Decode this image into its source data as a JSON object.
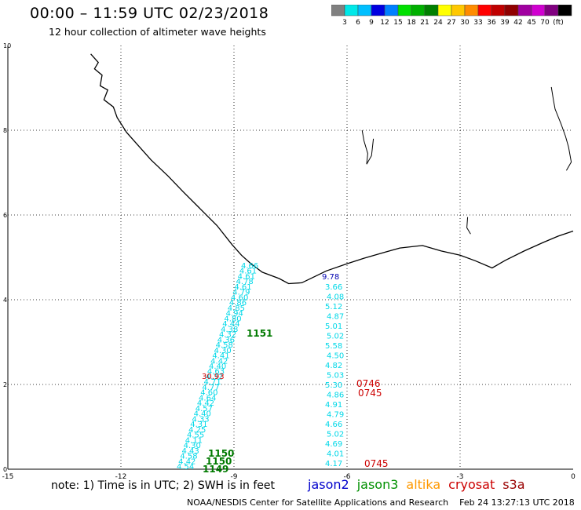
{
  "header": {
    "title": "00:00 – 11:59 UTC 02/23/2018",
    "subtitle": "12 hour collection of altimeter wave heights"
  },
  "colorbar": {
    "colors": [
      "#808080",
      "#00e8e8",
      "#00bfff",
      "#0000e0",
      "#0080ff",
      "#00e000",
      "#00b000",
      "#008000",
      "#ffff00",
      "#ffc800",
      "#ff8c00",
      "#ff0000",
      "#c00000",
      "#900000",
      "#a000a0",
      "#d000d0",
      "#800080",
      "#000000"
    ],
    "labels": [
      "3",
      "6",
      "9",
      "12",
      "15",
      "18",
      "21",
      "24",
      "27",
      "30",
      "33",
      "36",
      "39",
      "42",
      "45",
      "70",
      "(ft)"
    ]
  },
  "map": {
    "lon_range": [
      -15,
      0
    ],
    "lat_range": [
      0,
      10
    ],
    "x_ticks": [
      "-15",
      "-12",
      "-9",
      "-6",
      "-3",
      "0"
    ],
    "y_ticks": [
      "10",
      "8",
      "6",
      "4",
      "2",
      "0"
    ]
  },
  "tracks": {
    "cyan_left": [
      "4.66",
      "4.61",
      "4.61",
      "4.78",
      "4.61",
      "4.79",
      "4.60",
      "4.86",
      "4.85",
      "4.94",
      "4.80",
      "4.44",
      "4.38",
      "4.32",
      "4.36",
      "4.58",
      "4.30",
      "4.41",
      "4.42",
      "4.40",
      "4.63",
      "4.32",
      "4.71",
      "4.77",
      "4.60",
      "4.64",
      "4.42",
      "4.57",
      "4.40",
      "4.33",
      "4.31",
      "4.25",
      "4.55",
      "4.11",
      "4.30",
      "4.43",
      "4.58",
      "4.42",
      "4.54"
    ],
    "cyan_right": [
      "3.66",
      "4.08",
      "5.12",
      "4.87",
      "5.01",
      "5.02",
      "5.58",
      "4.50",
      "4.82",
      "5.03",
      "5.30",
      "4.86",
      "4.91",
      "4.79",
      "4.66",
      "5.02",
      "4.69",
      "4.01",
      "4.17"
    ],
    "dark_blue": "9.78",
    "red_outlier": "30.93",
    "green_times": [
      "1151",
      "1150",
      "1150",
      "1149"
    ],
    "red_times": [
      "0746",
      "0745",
      "0745"
    ]
  },
  "footer": {
    "note": "note: 1) Time is in UTC; 2) SWH is in feet",
    "legend": [
      {
        "label": "jason2",
        "color": "#0000cc"
      },
      {
        "label": "jason3",
        "color": "#009000"
      },
      {
        "label": "altika",
        "color": "#ff9900"
      },
      {
        "label": "cryosat",
        "color": "#cc0000"
      },
      {
        "label": "s3a",
        "color": "#990000"
      }
    ],
    "credit": "NOAA/NESDIS Center for Satellite Applications and Research",
    "timestamp": "Feb 24 13:27:13 UTC 2018"
  }
}
